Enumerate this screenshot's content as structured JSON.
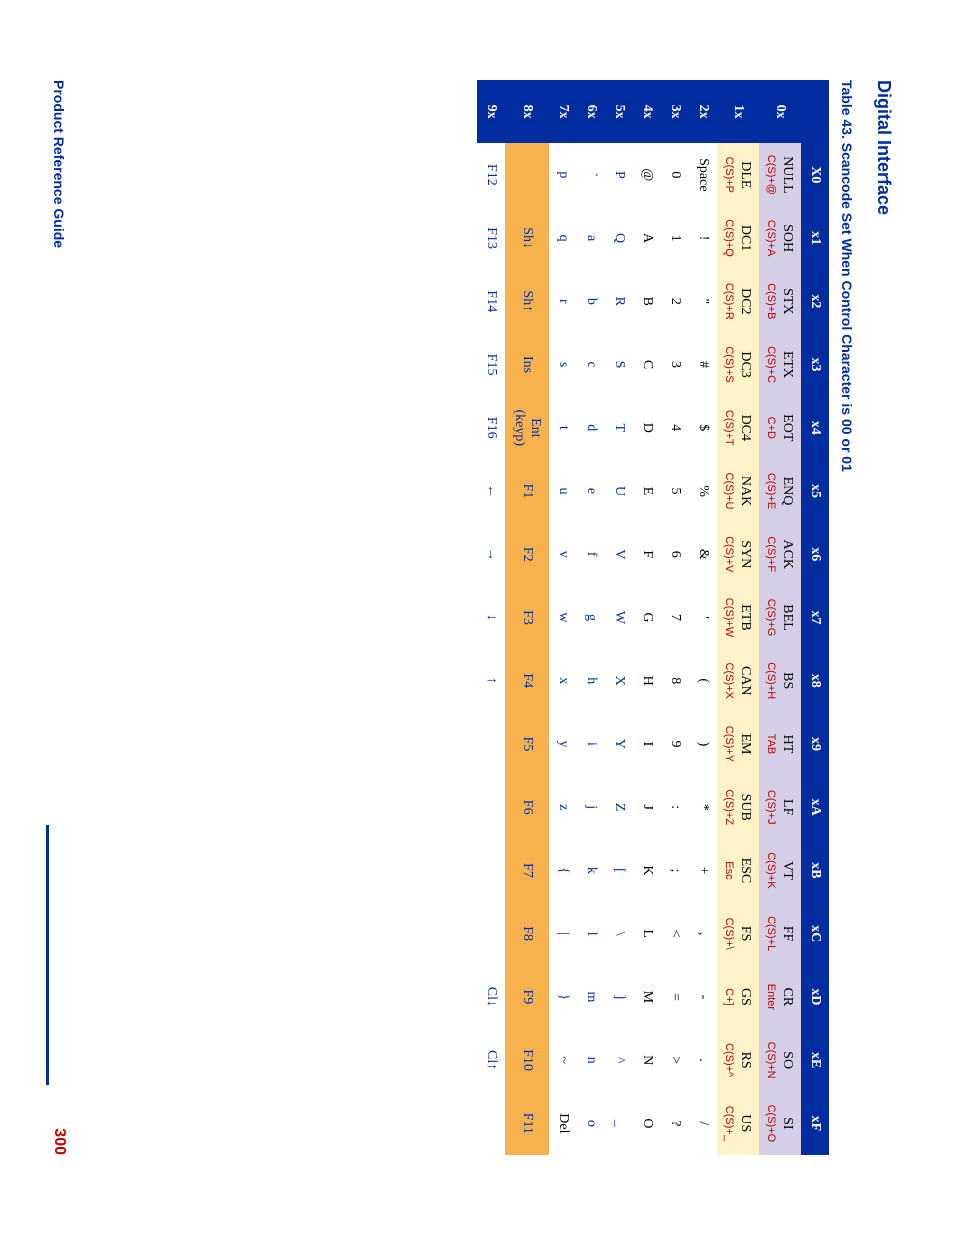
{
  "header": "Digital Interface",
  "caption": "Table 43.  Scancode Set When Control Character is 00  or  01",
  "footer": {
    "title": "Product Reference Guide",
    "page": "300"
  },
  "cols": [
    "X0",
    "x1",
    "x2",
    "x3",
    "x4",
    "x5",
    "x6",
    "x7",
    "x8",
    "x9",
    "xA",
    "xB",
    "xC",
    "xD",
    "xE",
    "xF"
  ],
  "rowlabels": [
    "0x",
    "1x",
    "2x",
    "3x",
    "4x",
    "5x",
    "6x",
    "7x",
    "8x",
    "9x"
  ],
  "rows": [
    [
      {
        "t": "NULL",
        "s": "C(S)+@"
      },
      {
        "t": "SOH",
        "s": "C(S)+A"
      },
      {
        "t": "STX",
        "s": "C(S)+B"
      },
      {
        "t": "ETX",
        "s": "C(S)+C"
      },
      {
        "t": "EOT",
        "s": "C+D"
      },
      {
        "t": "ENQ",
        "s": "C(S)+E"
      },
      {
        "t": "ACK",
        "s": "C(S)+F"
      },
      {
        "t": "BEL",
        "s": "C(S)+G"
      },
      {
        "t": "BS",
        "s": "C(S)+H"
      },
      {
        "t": "HT",
        "s": "TAB"
      },
      {
        "t": "LF",
        "s": "C(S)+J"
      },
      {
        "t": "VT",
        "s": "C(S)+K"
      },
      {
        "t": "FF",
        "s": "C(S)+L"
      },
      {
        "t": "CR",
        "s": "Enter"
      },
      {
        "t": "SO",
        "s": "C(S)+N"
      },
      {
        "t": "SI",
        "s": "C(S)+O"
      }
    ],
    [
      {
        "t": "DLE",
        "s": "C(S)+P"
      },
      {
        "t": "DC1",
        "s": "C(S)+Q"
      },
      {
        "t": "DC2",
        "s": "C(S)+R"
      },
      {
        "t": "DC3",
        "s": "C(S)+S"
      },
      {
        "t": "DC4",
        "s": "C(S)+T"
      },
      {
        "t": "NAK",
        "s": "C(S)+U"
      },
      {
        "t": "SYN",
        "s": "C(S)+V"
      },
      {
        "t": "ETB",
        "s": "C(S)+W"
      },
      {
        "t": "CAN",
        "s": "C(S)+X"
      },
      {
        "t": "EM",
        "s": "C(S)+Y"
      },
      {
        "t": "SUB",
        "s": "C(S)+Z"
      },
      {
        "t": "ESC",
        "s": "Esc"
      },
      {
        "t": "FS",
        "s": "C(S)+\\"
      },
      {
        "t": "GS",
        "s": "C+]"
      },
      {
        "t": "RS",
        "s": "C(S)+^"
      },
      {
        "t": "US",
        "s": "C(S)+_"
      }
    ],
    [
      {
        "t": "Space"
      },
      {
        "t": "!"
      },
      {
        "t": "\""
      },
      {
        "t": "#"
      },
      {
        "t": "$"
      },
      {
        "t": "%"
      },
      {
        "t": "&"
      },
      {
        "t": "'"
      },
      {
        "t": "("
      },
      {
        "t": ")"
      },
      {
        "t": "*"
      },
      {
        "t": "+"
      },
      {
        "t": ","
      },
      {
        "t": "-"
      },
      {
        "t": "."
      },
      {
        "t": "/"
      }
    ],
    [
      {
        "t": "0"
      },
      {
        "t": "1"
      },
      {
        "t": "2"
      },
      {
        "t": "3"
      },
      {
        "t": "4"
      },
      {
        "t": "5"
      },
      {
        "t": "6"
      },
      {
        "t": "7"
      },
      {
        "t": "8"
      },
      {
        "t": "9"
      },
      {
        "t": ":"
      },
      {
        "t": ";"
      },
      {
        "t": "<"
      },
      {
        "t": "="
      },
      {
        "t": ">"
      },
      {
        "t": "?"
      }
    ],
    [
      {
        "t": "@"
      },
      {
        "t": "A"
      },
      {
        "t": "B"
      },
      {
        "t": "C"
      },
      {
        "t": "D"
      },
      {
        "t": "E"
      },
      {
        "t": "F"
      },
      {
        "t": "G"
      },
      {
        "t": "H"
      },
      {
        "t": "I"
      },
      {
        "t": "J"
      },
      {
        "t": "K"
      },
      {
        "t": "L"
      },
      {
        "t": "M"
      },
      {
        "t": "N"
      },
      {
        "t": "O"
      }
    ],
    [
      {
        "t": "P",
        "c": "bl"
      },
      {
        "t": "Q",
        "c": "bl"
      },
      {
        "t": "R",
        "c": "bl"
      },
      {
        "t": "S",
        "c": "bl"
      },
      {
        "t": "T",
        "c": "bl"
      },
      {
        "t": "U",
        "c": "bl"
      },
      {
        "t": "V",
        "c": "bl"
      },
      {
        "t": "W",
        "c": "bl"
      },
      {
        "t": "X",
        "c": "bl"
      },
      {
        "t": "Y",
        "c": "bl"
      },
      {
        "t": "Z",
        "c": "bl"
      },
      {
        "t": "[",
        "c": "bl"
      },
      {
        "t": "\\",
        "c": "bl"
      },
      {
        "t": "]",
        "c": "bl"
      },
      {
        "t": "^",
        "c": "bl"
      },
      {
        "t": "_",
        "c": "bl"
      }
    ],
    [
      {
        "t": "`",
        "c": "bl"
      },
      {
        "t": "a",
        "c": "bl"
      },
      {
        "t": "b",
        "c": "bl"
      },
      {
        "t": "c",
        "c": "bl"
      },
      {
        "t": "d",
        "c": "bl"
      },
      {
        "t": "e",
        "c": "bl"
      },
      {
        "t": "f",
        "c": "bl"
      },
      {
        "t": "g",
        "c": "bl"
      },
      {
        "t": "h",
        "c": "bl"
      },
      {
        "t": "i",
        "c": "bl"
      },
      {
        "t": "j",
        "c": "bl"
      },
      {
        "t": "k",
        "c": "bl"
      },
      {
        "t": "l",
        "c": "bl"
      },
      {
        "t": "m",
        "c": "bl"
      },
      {
        "t": "n",
        "c": "bl"
      },
      {
        "t": "o",
        "c": "bl"
      }
    ],
    [
      {
        "t": "p",
        "c": "bl"
      },
      {
        "t": "q",
        "c": "bl"
      },
      {
        "t": "r",
        "c": "bl"
      },
      {
        "t": "s",
        "c": "bl"
      },
      {
        "t": "t",
        "c": "bl"
      },
      {
        "t": "u",
        "c": "bl"
      },
      {
        "t": "v",
        "c": "bl"
      },
      {
        "t": "w",
        "c": "bl"
      },
      {
        "t": "x",
        "c": "bl"
      },
      {
        "t": "y",
        "c": "bl"
      },
      {
        "t": "z",
        "c": "bl"
      },
      {
        "t": "{",
        "c": "bl"
      },
      {
        "t": "|",
        "c": "bl"
      },
      {
        "t": "}",
        "c": "bl"
      },
      {
        "t": "~",
        "c": "bl"
      },
      {
        "t": "Del"
      }
    ],
    [
      {
        "t": ""
      },
      {
        "t": "Sh↓",
        "c": "bl"
      },
      {
        "t": "Sh↑",
        "c": "bl"
      },
      {
        "t": "Ins",
        "c": "bl"
      },
      {
        "t": "Ent (keyp)",
        "c": "bl"
      },
      {
        "t": "F1",
        "c": "bl"
      },
      {
        "t": "F2",
        "c": "bl"
      },
      {
        "t": "F3",
        "c": "bl"
      },
      {
        "t": "F4",
        "c": "bl"
      },
      {
        "t": "F5",
        "c": "bl"
      },
      {
        "t": "F6",
        "c": "bl"
      },
      {
        "t": "F7",
        "c": "bl"
      },
      {
        "t": "F8",
        "c": "bl"
      },
      {
        "t": "F9",
        "c": "bl"
      },
      {
        "t": "F10",
        "c": "bl"
      },
      {
        "t": "F11",
        "c": "bl"
      }
    ],
    [
      {
        "t": "F12",
        "c": "bl"
      },
      {
        "t": "F13",
        "c": "bl"
      },
      {
        "t": "F14",
        "c": "bl"
      },
      {
        "t": "F15",
        "c": "bl"
      },
      {
        "t": "F16",
        "c": "bl"
      },
      {
        "t": "←",
        "c": "bl"
      },
      {
        "t": "→",
        "c": "bl"
      },
      {
        "t": "↓",
        "c": "bl"
      },
      {
        "t": "↑",
        "c": "bl"
      },
      {
        "t": ""
      },
      {
        "t": ""
      },
      {
        "t": ""
      },
      {
        "t": ""
      },
      {
        "t": "Cl↓",
        "c": "bl"
      },
      {
        "t": "Cl↑",
        "c": "bl"
      },
      {
        "t": ""
      }
    ]
  ],
  "rowband": [
    "band0",
    "band1",
    "band2",
    "band2",
    "band2",
    "band2",
    "band2",
    "band2",
    "r8",
    "band2"
  ]
}
